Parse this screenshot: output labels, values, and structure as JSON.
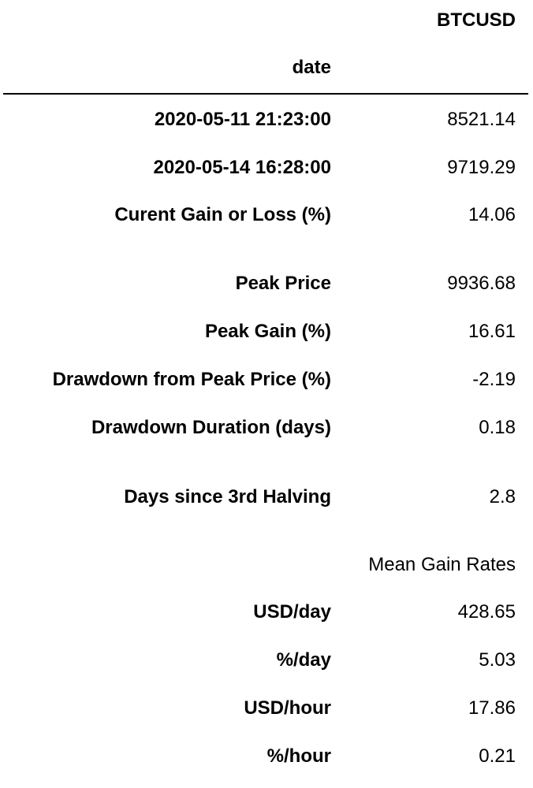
{
  "table": {
    "column_header": "BTCUSD",
    "index_name": "date",
    "rows": [
      {
        "label": "2020-05-11 21:23:00",
        "value": "8521.14"
      },
      {
        "label": "2020-05-14 16:28:00",
        "value": "9719.29"
      },
      {
        "label": "Curent Gain or Loss (%)",
        "value": "14.06"
      },
      {
        "label": "",
        "value": ""
      },
      {
        "label": "Peak Price",
        "value": "9936.68"
      },
      {
        "label": "Peak Gain (%)",
        "value": "16.61"
      },
      {
        "label": "Drawdown from Peak Price (%)",
        "value": "-2.19"
      },
      {
        "label": "Drawdown Duration (days)",
        "value": "0.18"
      },
      {
        "label": "",
        "value": ""
      },
      {
        "label": "Days since 3rd Halving",
        "value": "2.8"
      },
      {
        "label": "",
        "value": ""
      },
      {
        "label": "",
        "value": "Mean Gain Rates"
      },
      {
        "label": "USD/day",
        "value": "428.65"
      },
      {
        "label": "%/day",
        "value": "5.03"
      },
      {
        "label": "USD/hour",
        "value": "17.86"
      },
      {
        "label": "%/hour",
        "value": "0.21"
      }
    ]
  }
}
